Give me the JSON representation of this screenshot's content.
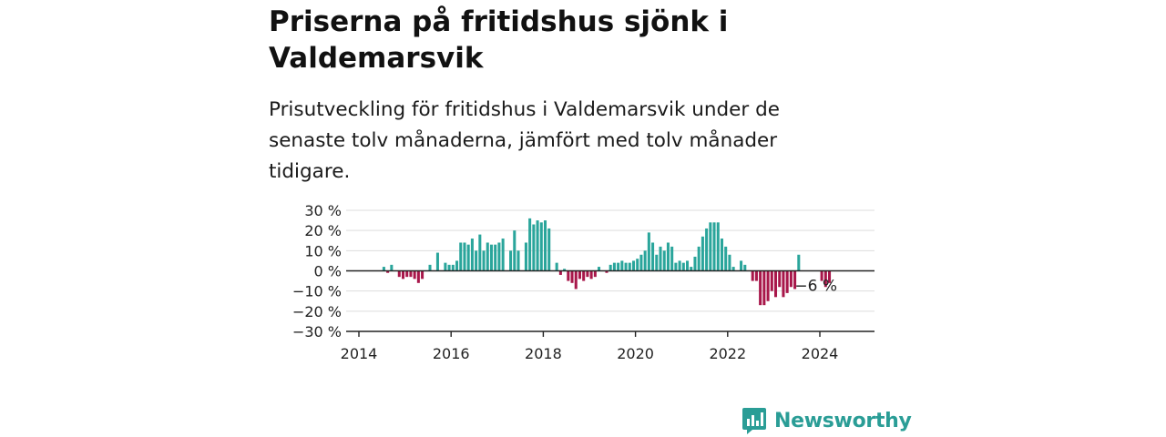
{
  "header": {
    "title": "Priserna på fritidshus sjönk i Valdemarsvik",
    "subtitle": "Prisutveckling för fritidshus i Valdemarsvik under de senaste tolv månaderna, jämfört med tolv månader tidigare."
  },
  "brand": {
    "name": "Newsworthy",
    "icon": "newsworthy-logo-icon",
    "color": "#2a9d96"
  },
  "chart_data": {
    "type": "bar",
    "start": "2014-07",
    "frequency": "monthly",
    "y_unit": "%",
    "ylim": [
      -30,
      30
    ],
    "y_ticks": [
      30,
      20,
      10,
      0,
      -10,
      -20,
      -30
    ],
    "y_tick_labels": [
      "30 %",
      "20 %",
      "10 %",
      "0 %",
      "−10 %",
      "−20 %",
      "−30 %"
    ],
    "x_ticks": [
      "2014",
      "2016",
      "2018",
      "2020",
      "2022",
      "2024"
    ],
    "grid": true,
    "colors": {
      "positive": "#2aa59b",
      "negative": "#a8174a",
      "grid": "#dddddd",
      "axis": "#222222",
      "text": "#222222"
    },
    "values": [
      2,
      -1,
      3,
      null,
      -3,
      -4,
      -3,
      -3,
      -4,
      -6,
      -4,
      null,
      3,
      0,
      9,
      0,
      4,
      3,
      3,
      5,
      14,
      14,
      13,
      16,
      10,
      18,
      10,
      14,
      13,
      13,
      14,
      16,
      null,
      10,
      20,
      10,
      null,
      14,
      26,
      23,
      25,
      24,
      25,
      21,
      null,
      4,
      -2,
      1,
      -5,
      -6,
      -9,
      -4,
      -5,
      -3,
      -4,
      -3,
      2,
      null,
      -1,
      3,
      4,
      4,
      5,
      4,
      4,
      5,
      6,
      8,
      10,
      19,
      14,
      8,
      12,
      10,
      14,
      12,
      4,
      5,
      4,
      5,
      2,
      7,
      12,
      17,
      21,
      24,
      24,
      24,
      16,
      12,
      8,
      2,
      null,
      5,
      3,
      null,
      -5,
      -5,
      -17,
      -17,
      -15,
      -10,
      -13,
      -8,
      -13,
      -11,
      -8,
      -9,
      8,
      null,
      null,
      null,
      null,
      null,
      -5,
      -8,
      -6
    ],
    "annotation": {
      "text": "−6 %",
      "index": 112
    }
  }
}
